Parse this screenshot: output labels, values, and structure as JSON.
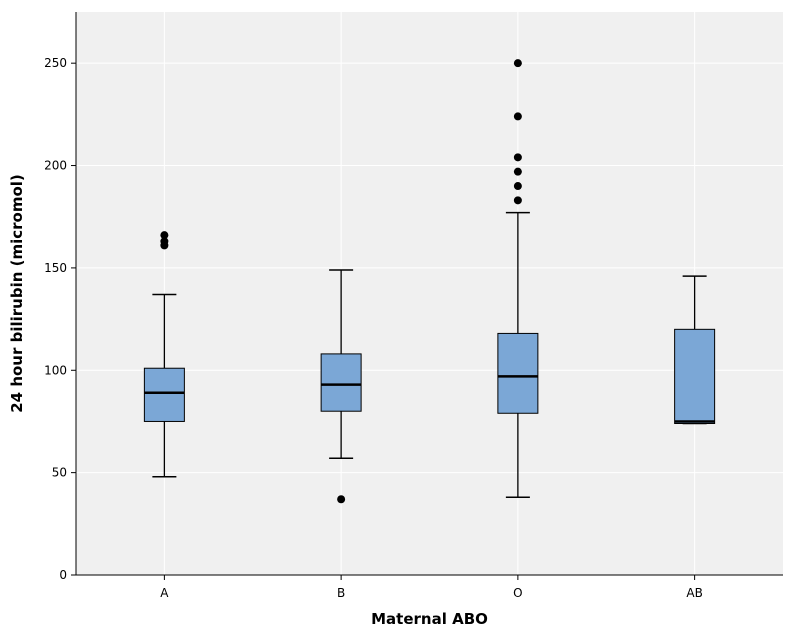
{
  "chart_data": {
    "type": "boxplot",
    "title": "",
    "xlabel": "Maternal ABO",
    "ylabel": "24 hour bilirubin (micromol)",
    "categories": [
      "A",
      "B",
      "O",
      "AB"
    ],
    "ylim": [
      0,
      275
    ],
    "yticks": [
      0,
      50,
      100,
      150,
      200,
      250
    ],
    "grid": true,
    "boxes": [
      {
        "category": "A",
        "whisker_low": 48,
        "q1": 75,
        "median": 89,
        "q3": 101,
        "whisker_high": 137,
        "outliers": [
          161,
          163,
          166
        ]
      },
      {
        "category": "B",
        "whisker_low": 57,
        "q1": 80,
        "median": 93,
        "q3": 108,
        "whisker_high": 149,
        "outliers": [
          37
        ]
      },
      {
        "category": "O",
        "whisker_low": 38,
        "q1": 79,
        "median": 97,
        "q3": 118,
        "whisker_high": 177,
        "outliers": [
          183,
          190,
          197,
          204,
          224,
          250
        ]
      },
      {
        "category": "AB",
        "whisker_low": 74,
        "q1": 74,
        "median": 75,
        "q3": 120,
        "whisker_high": 146,
        "outliers": []
      }
    ]
  },
  "colors": {
    "background": "#f0f0f0",
    "box_fill": "#7ba7d6",
    "grid": "#ffffff",
    "stroke": "#000000"
  }
}
